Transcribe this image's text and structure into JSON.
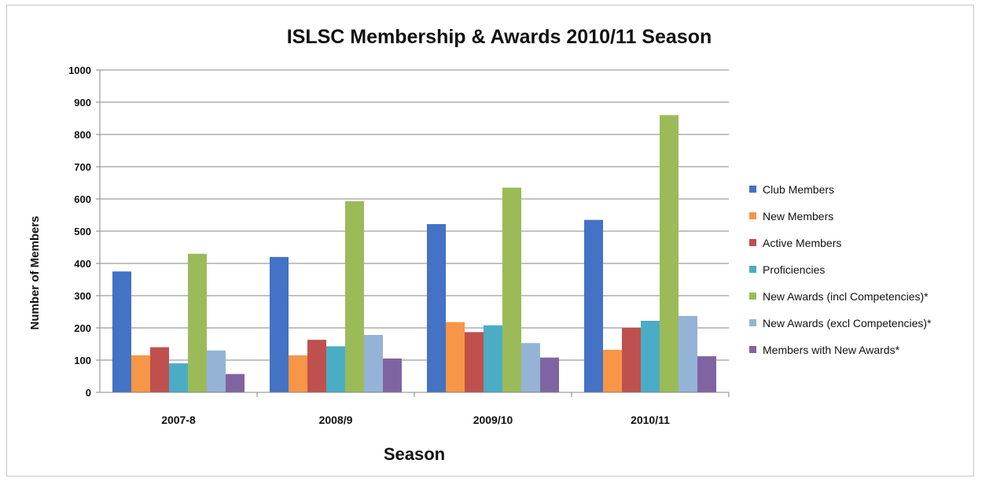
{
  "chart_data": {
    "type": "bar",
    "title": "ISLSC Membership & Awards 2010/11 Season",
    "xlabel": "Season",
    "ylabel": "Number of Members",
    "ylim": [
      0,
      1000
    ],
    "yticks": [
      0,
      100,
      200,
      300,
      400,
      500,
      600,
      700,
      800,
      900,
      1000
    ],
    "grid": true,
    "legend_position": "right",
    "categories": [
      "2007-8",
      "2008/9",
      "2009/10",
      "2010/11"
    ],
    "series": [
      {
        "name": "Club Members",
        "color": "#4472C4",
        "values": [
          375,
          420,
          522,
          535
        ]
      },
      {
        "name": "New Members",
        "color": "#F79646",
        "values": [
          115,
          115,
          218,
          132
        ]
      },
      {
        "name": "Active Members",
        "color": "#C0504D",
        "values": [
          140,
          163,
          187,
          200
        ]
      },
      {
        "name": "Proficiencies",
        "color": "#4BACC6",
        "values": [
          90,
          143,
          208,
          222
        ]
      },
      {
        "name": "New Awards (incl Competencies)*",
        "color": "#9BBB59",
        "values": [
          430,
          593,
          635,
          860
        ]
      },
      {
        "name": "New Awards (excl Competencies)*",
        "color": "#95B3D7",
        "values": [
          130,
          178,
          153,
          237
        ]
      },
      {
        "name": "Members with New Awards*",
        "color": "#8064A2",
        "values": [
          57,
          105,
          108,
          112
        ]
      }
    ]
  }
}
